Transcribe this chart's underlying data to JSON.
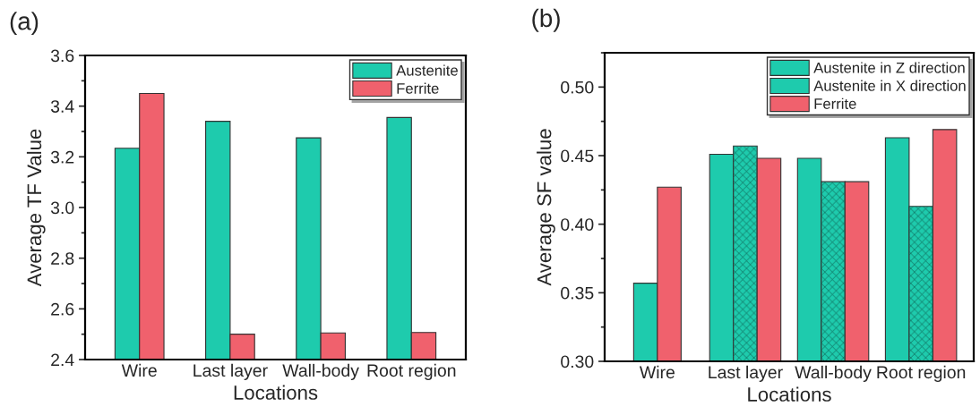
{
  "chart_data": [
    {
      "type": "bar",
      "title": "(a)",
      "xlabel": "Locations",
      "ylabel": "Average TF Value",
      "categories": [
        "Wire",
        "Last layer",
        "Wall-body",
        "Root region"
      ],
      "series": [
        {
          "name": "Austenite",
          "color": "#1ecbad",
          "values": [
            3.234,
            3.34,
            3.275,
            3.355
          ]
        },
        {
          "name": "Ferrite",
          "color": "#f0616d",
          "values": [
            3.45,
            2.5,
            2.505,
            2.507
          ]
        }
      ],
      "ylim": [
        2.4,
        3.6
      ],
      "yticks": [
        {
          "value": 2.4,
          "label": "2.4"
        },
        {
          "value": 2.6,
          "label": "2.6"
        },
        {
          "value": 2.8,
          "label": "2.8"
        },
        {
          "value": 3.0,
          "label": "3.0"
        },
        {
          "value": 3.2,
          "label": "3.2"
        },
        {
          "value": 3.4,
          "label": "3.4"
        },
        {
          "value": 3.6,
          "label": "3.6"
        }
      ],
      "grid": false,
      "legend": "top right"
    },
    {
      "type": "bar",
      "title": "(b)",
      "xlabel": "Locations",
      "ylabel": "Average SF value",
      "categories": [
        "Wire",
        "Last layer",
        "Wall-body",
        "Root region"
      ],
      "series": [
        {
          "name": "Austenite in Z direction",
          "color": "#1ecbad",
          "values": [
            0.357,
            0.451,
            0.448,
            0.463
          ]
        },
        {
          "name": "Austenite in X direction",
          "color": "#1ecbad",
          "values": [
            null,
            0.457,
            0.431,
            0.413
          ]
        },
        {
          "name": "Ferrite",
          "color": "#f0616d",
          "values": [
            0.427,
            0.448,
            0.431,
            0.469
          ]
        }
      ],
      "ylim": [
        0.3,
        0.525
      ],
      "yticks": [
        {
          "value": 0.3,
          "label": "0.30"
        },
        {
          "value": 0.35,
          "label": "0.35"
        },
        {
          "value": 0.4,
          "label": "0.40"
        },
        {
          "value": 0.45,
          "label": "0.45"
        },
        {
          "value": 0.5,
          "label": "0.50"
        }
      ],
      "grid": false,
      "legend": "top right"
    }
  ]
}
